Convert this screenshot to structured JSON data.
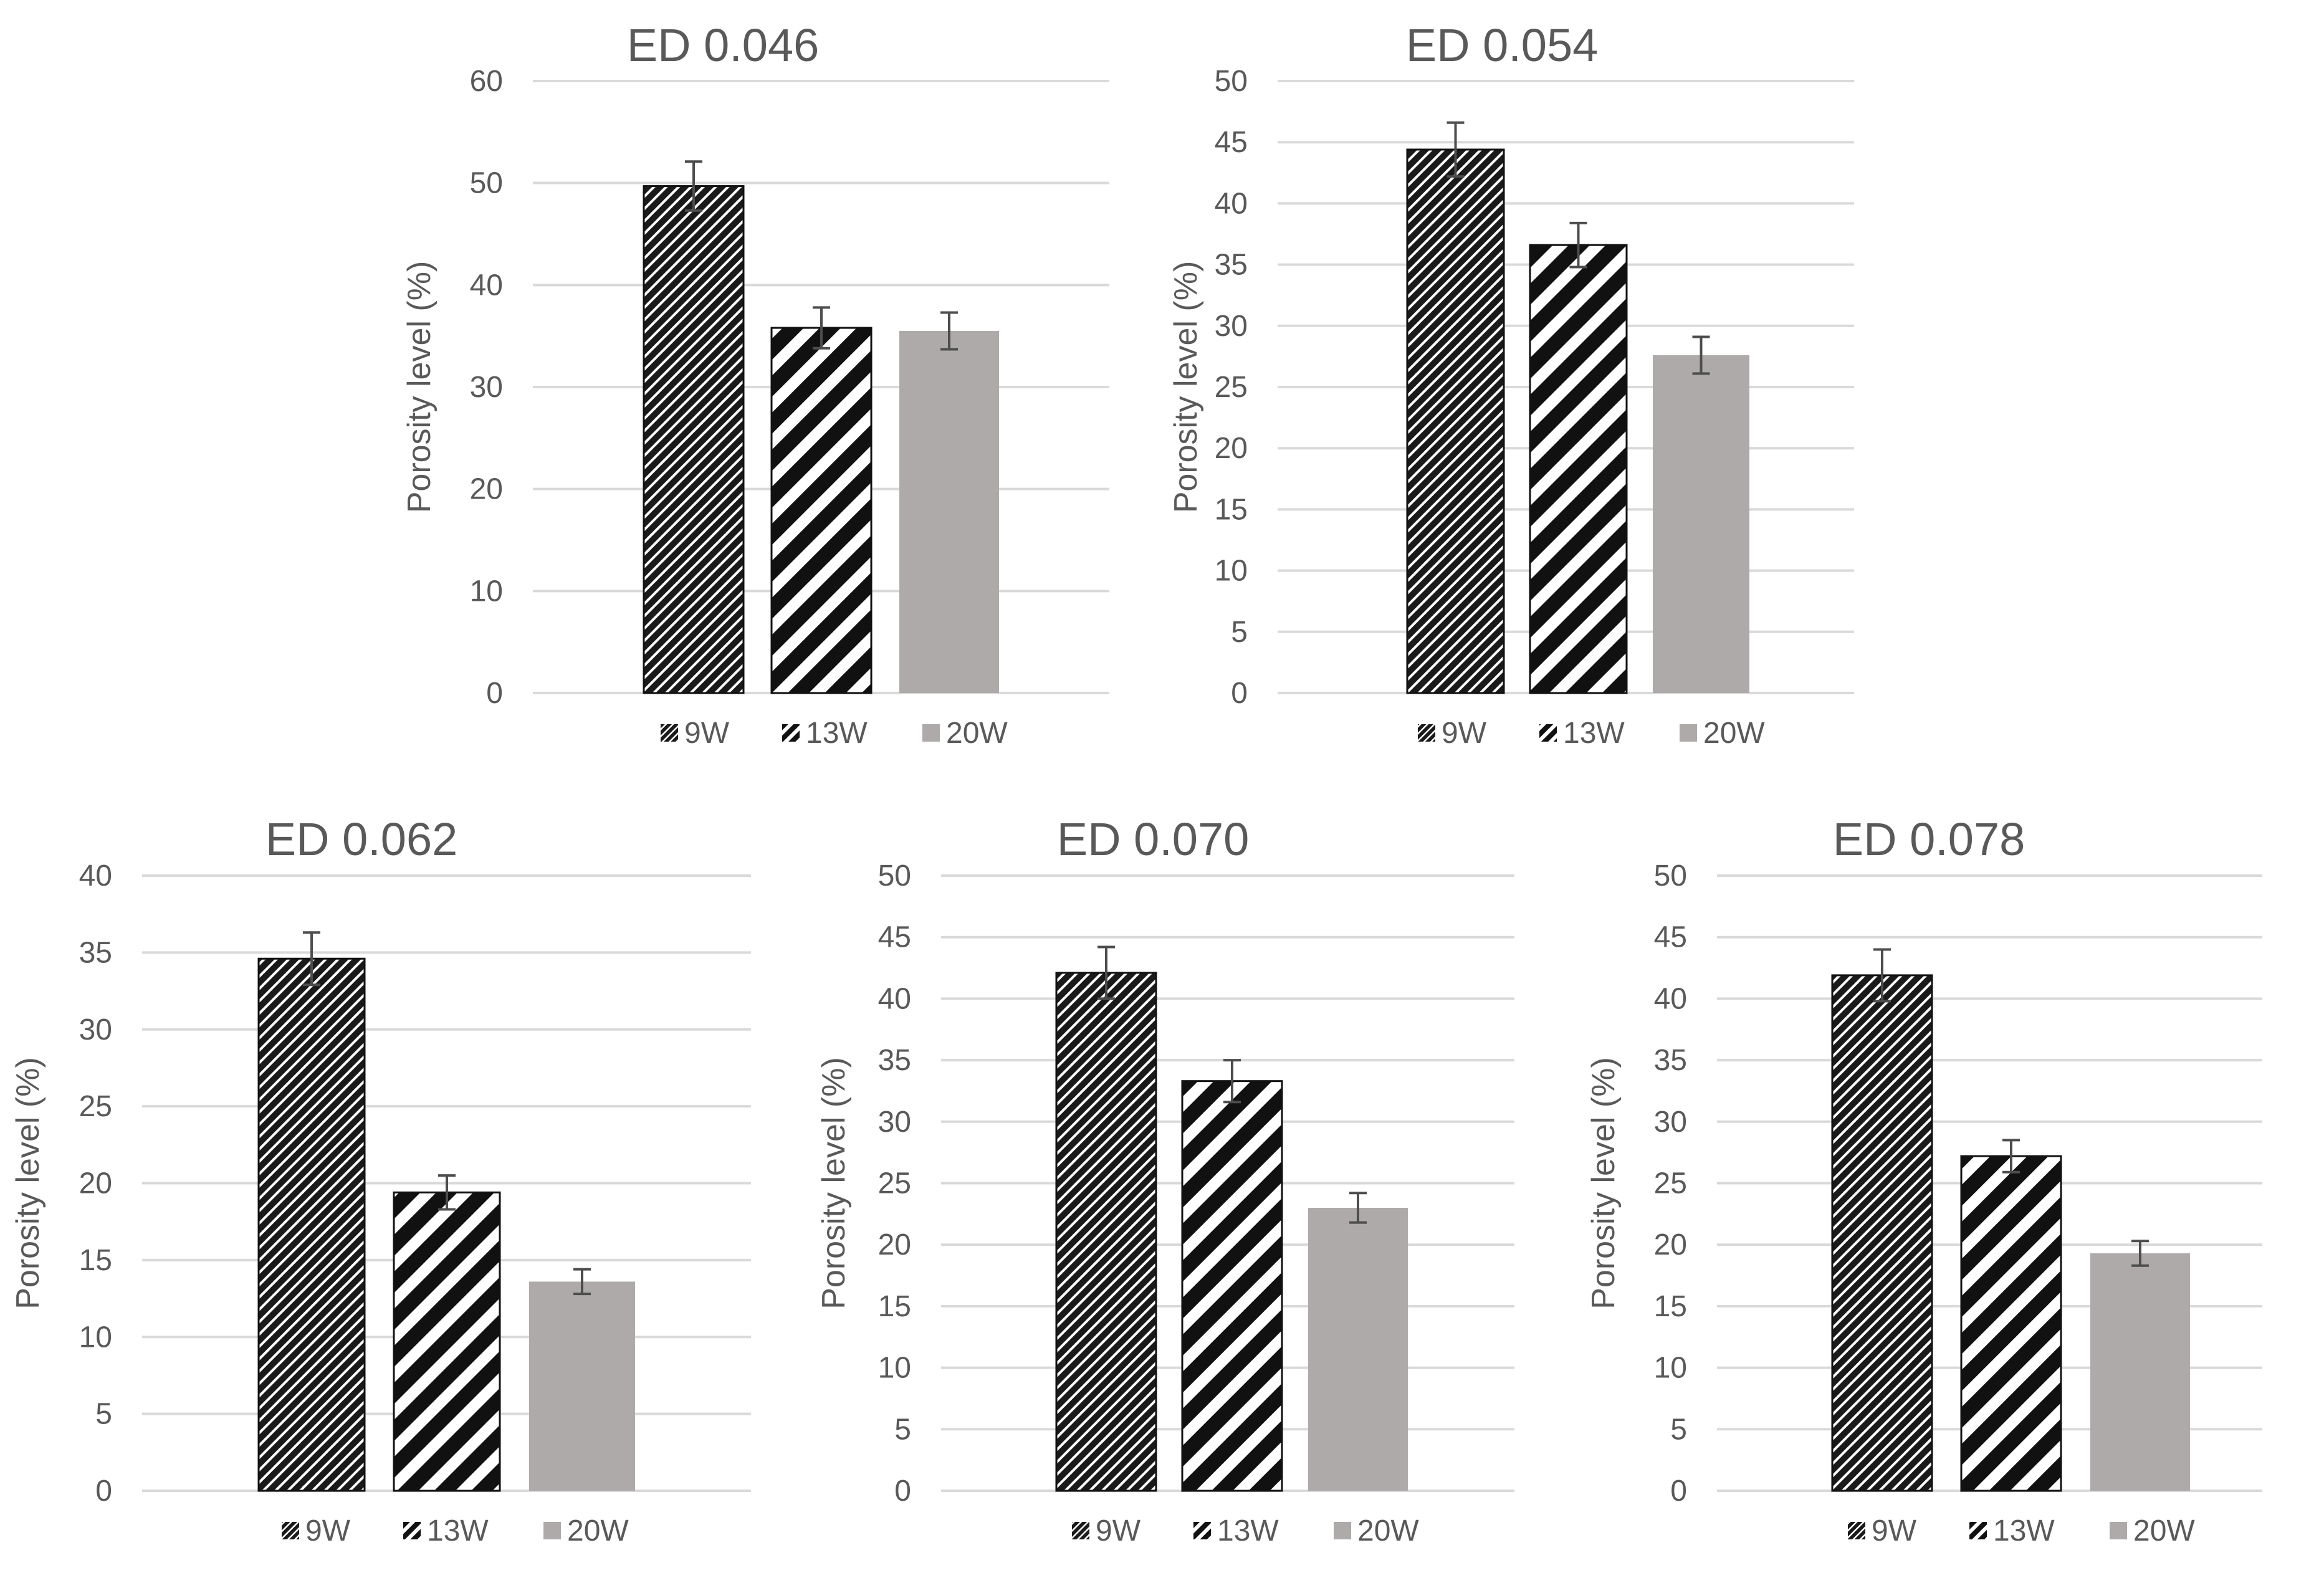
{
  "series_colors": {
    "dense": "#1a1a1a",
    "light": "#ffffff",
    "solid": "#aeaaaa",
    "grid": "#d9d9d9",
    "text": "#595959"
  },
  "chart_data": [
    {
      "type": "bar",
      "title": "ED 0.046",
      "ylabel": "Porosity level (%)",
      "xlabel": "",
      "ylim": [
        0,
        60
      ],
      "ystep": 10,
      "yticks": [
        "0",
        "10",
        "20",
        "30",
        "40",
        "50",
        "60"
      ],
      "categories": [
        "9W",
        "13W",
        "20W"
      ],
      "values": [
        49.7,
        35.8,
        35.5
      ],
      "errors": [
        2.4,
        2.0,
        1.8
      ],
      "legend": [
        "9W",
        "13W",
        "20W"
      ],
      "legend_position": "bottom"
    },
    {
      "type": "bar",
      "title": "ED 0.054",
      "ylabel": "Porosity level (%)",
      "xlabel": "",
      "ylim": [
        0,
        50
      ],
      "ystep": 5,
      "yticks": [
        "0",
        "5",
        "10",
        "15",
        "20",
        "25",
        "30",
        "35",
        "40",
        "45",
        "50"
      ],
      "categories": [
        "9W",
        "13W",
        "20W"
      ],
      "values": [
        44.4,
        36.6,
        27.6
      ],
      "errors": [
        2.2,
        1.8,
        1.5
      ],
      "legend": [
        "9W",
        "13W",
        "20W"
      ],
      "legend_position": "bottom"
    },
    {
      "type": "bar",
      "title": "ED 0.062",
      "ylabel": "Porosity level (%)",
      "xlabel": "",
      "ylim": [
        0,
        40
      ],
      "ystep": 5,
      "yticks": [
        "0",
        "5",
        "10",
        "15",
        "20",
        "25",
        "30",
        "35",
        "40"
      ],
      "categories": [
        "9W",
        "13W",
        "20W"
      ],
      "values": [
        34.6,
        19.4,
        13.6
      ],
      "errors": [
        1.7,
        1.1,
        0.8
      ],
      "legend": [
        "9W",
        "13W",
        "20W"
      ],
      "legend_position": "bottom"
    },
    {
      "type": "bar",
      "title": "ED 0.070",
      "ylabel": "Porosity level (%)",
      "xlabel": "",
      "ylim": [
        0,
        50
      ],
      "ystep": 5,
      "yticks": [
        "0",
        "5",
        "10",
        "15",
        "20",
        "25",
        "30",
        "35",
        "40",
        "45",
        "50"
      ],
      "categories": [
        "9W",
        "13W",
        "20W"
      ],
      "values": [
        42.1,
        33.3,
        23.0
      ],
      "errors": [
        2.1,
        1.7,
        1.2
      ],
      "legend": [
        "9W",
        "13W",
        "20W"
      ],
      "legend_position": "bottom"
    },
    {
      "type": "bar",
      "title": "ED 0.078",
      "ylabel": "Porosity level (%)",
      "xlabel": "",
      "ylim": [
        0,
        50
      ],
      "ystep": 5,
      "yticks": [
        "0",
        "5",
        "10",
        "15",
        "20",
        "25",
        "30",
        "35",
        "40",
        "45",
        "50"
      ],
      "categories": [
        "9W",
        "13W",
        "20W"
      ],
      "values": [
        41.9,
        27.2,
        19.3
      ],
      "errors": [
        2.1,
        1.3,
        1.0
      ],
      "legend": [
        "9W",
        "13W",
        "20W"
      ],
      "legend_position": "bottom"
    }
  ]
}
